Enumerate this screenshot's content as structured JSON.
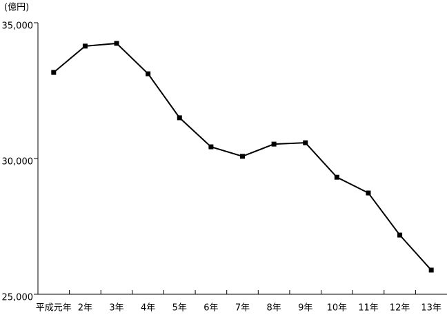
{
  "chart_data": {
    "type": "line",
    "unit_label": "(億円)",
    "categories": [
      "平成元年",
      "2年",
      "3年",
      "4年",
      "5年",
      "6年",
      "7年",
      "8年",
      "9年",
      "10年",
      "11年",
      "12年",
      "13年"
    ],
    "values": [
      33170,
      34140,
      34240,
      33120,
      31500,
      30430,
      30080,
      30530,
      30580,
      29310,
      28730,
      27180,
      25890
    ],
    "color": "#000000",
    "ylim": [
      25000,
      35000
    ],
    "yticks": [
      {
        "value": 25000,
        "label": "25,000"
      },
      {
        "value": 30000,
        "label": "30,000"
      },
      {
        "value": 35000,
        "label": "35,000"
      }
    ],
    "grid": false
  }
}
